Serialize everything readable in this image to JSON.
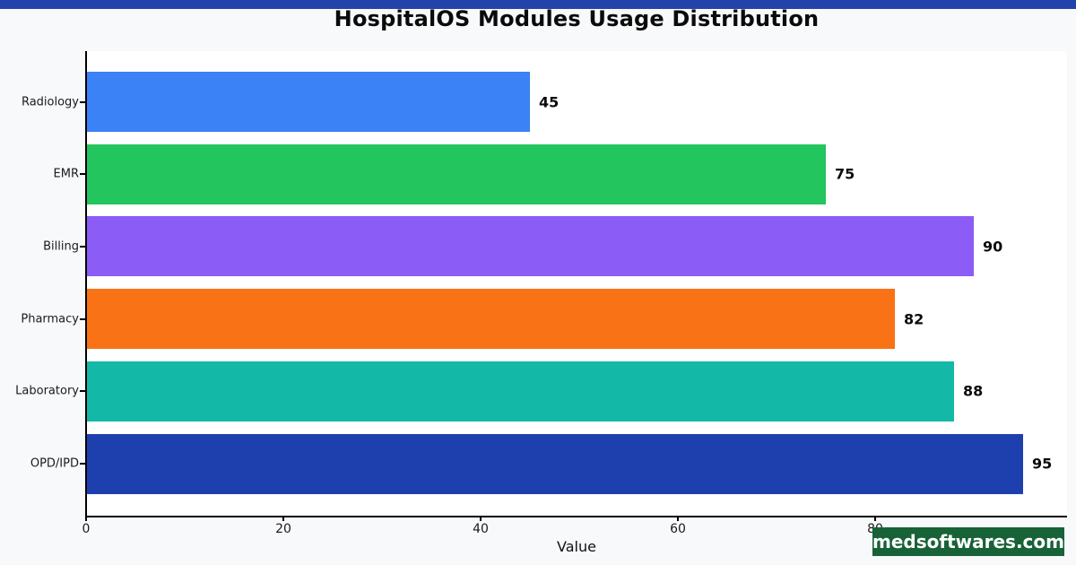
{
  "page": {
    "watermark": "medsoftwares.com",
    "top_strip_color": "#2343ab",
    "badge_color": "#176236",
    "background_color": "#f8f9fb",
    "plot_background_color": "#ffffff"
  },
  "chart_data": {
    "type": "bar",
    "orientation": "horizontal",
    "title": "HospitalOS Modules Usage Distribution",
    "categories": [
      "Radiology",
      "EMR",
      "Billing",
      "Pharmacy",
      "Laboratory",
      "OPD/IPD"
    ],
    "values": [
      45,
      75,
      90,
      82,
      88,
      95
    ],
    "bar_colors": [
      "#3b82f6",
      "#22c55e",
      "#8b5cf6",
      "#f97316",
      "#14b8a6",
      "#1e40af"
    ],
    "value_labels": [
      "45",
      "75",
      "90",
      "82",
      "88",
      "95"
    ],
    "xlabel": "Value",
    "x_ticks": [
      0,
      20,
      40,
      60,
      80
    ],
    "xlim": [
      0,
      99.5
    ],
    "grid": false,
    "legend": false,
    "value_labels_shown": true
  }
}
